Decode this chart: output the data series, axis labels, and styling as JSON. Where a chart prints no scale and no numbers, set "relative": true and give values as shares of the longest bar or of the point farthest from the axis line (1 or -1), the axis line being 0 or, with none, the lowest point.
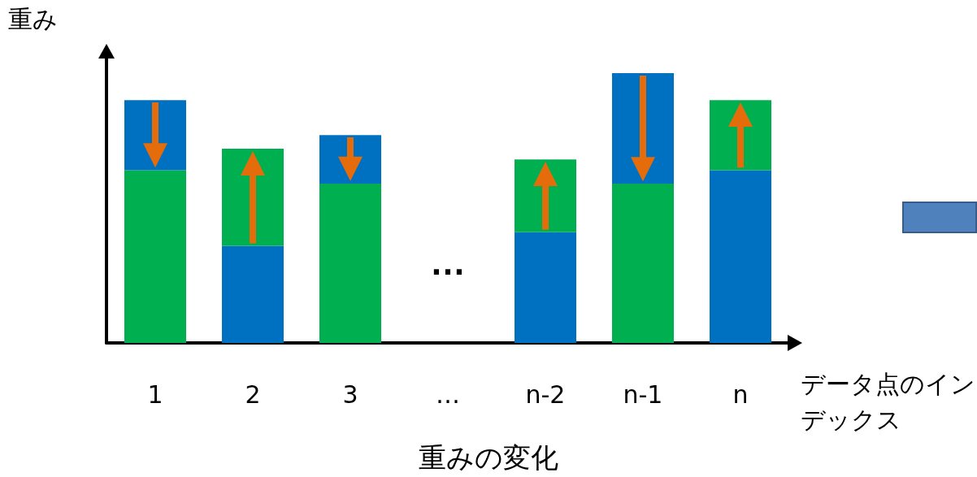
{
  "chart_data": {
    "type": "bar",
    "title": "重みの変化",
    "xlabel": "データ点のインデックス",
    "ylabel": "重み",
    "relative": true,
    "stacked": true,
    "categories": [
      "1",
      "2",
      "3",
      "…",
      "n-2",
      "n-1",
      "n"
    ],
    "series": [
      {
        "values": [
          0.64,
          0.36,
          0.59,
          null,
          0.41,
          0.59,
          0.64
        ],
        "colors": [
          "#00b050",
          "#0070c0",
          "#00b050",
          null,
          "#0070c0",
          "#00b050",
          "#0070c0"
        ]
      },
      {
        "values": [
          0.26,
          0.36,
          0.18,
          null,
          0.27,
          0.41,
          0.26
        ],
        "colors": [
          "#0070c0",
          "#00b050",
          "#0070c0",
          null,
          "#00b050",
          "#0070c0",
          "#00b050"
        ]
      }
    ],
    "annotations": [
      "…"
    ],
    "grid": false
  }
}
